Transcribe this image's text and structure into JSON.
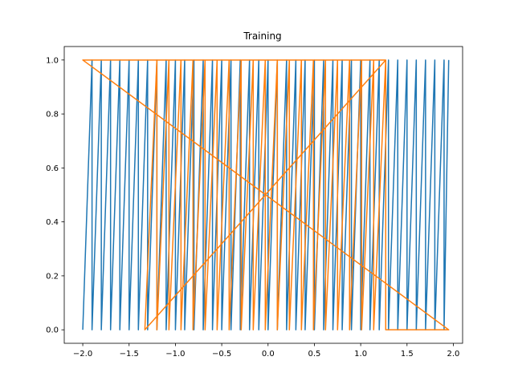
{
  "chart_data": {
    "type": "line",
    "title": "Training",
    "xlabel": "",
    "ylabel": "",
    "xlim": [
      -2.2,
      2.1
    ],
    "ylim": [
      -0.05,
      1.05
    ],
    "xticks": [
      -2.0,
      -1.5,
      -1.0,
      -0.5,
      0.0,
      0.5,
      1.0,
      1.5,
      2.0
    ],
    "xtick_labels": [
      "−2.0",
      "−1.5",
      "−1.0",
      "−0.5",
      "0.0",
      "0.5",
      "1.0",
      "1.5",
      "2.0"
    ],
    "yticks": [
      0.0,
      0.2,
      0.4,
      0.6,
      0.8,
      1.0
    ],
    "ytick_labels": [
      "0.0",
      "0.2",
      "0.4",
      "0.6",
      "0.8",
      "1.0"
    ],
    "grid": false,
    "series": [
      {
        "color": "#1f77b4",
        "linewidth": 1.5,
        "x": [
          -2.0,
          -1.9,
          -1.9,
          -1.8,
          -1.8,
          -1.7,
          -1.7,
          -1.6,
          -1.6,
          -1.5,
          -1.5,
          -1.4,
          -1.4,
          -1.3,
          -1.3,
          -1.2,
          -1.2,
          -1.1,
          -1.1,
          -1.0,
          -1.0,
          -0.9,
          -0.9,
          -0.8,
          -0.8,
          -0.7,
          -0.7,
          -0.6,
          -0.6,
          -0.5,
          -0.5,
          -0.4,
          -0.4,
          -0.3,
          -0.3,
          -0.2,
          -0.2,
          -0.1,
          -0.1,
          0.0,
          0.0,
          0.1,
          0.1,
          0.2,
          0.2,
          0.3,
          0.3,
          0.4,
          0.4,
          0.5,
          0.5,
          0.6,
          0.6,
          0.7,
          0.7,
          0.8,
          0.8,
          0.9,
          0.9,
          1.0,
          1.0,
          1.1,
          1.1,
          1.2,
          1.2,
          1.3,
          1.3,
          1.4,
          1.4,
          1.5,
          1.5,
          1.6,
          1.6,
          1.7,
          1.7,
          1.8,
          1.8,
          1.9,
          1.9,
          1.95
        ],
        "y": [
          0,
          1,
          0,
          1,
          0,
          1,
          0,
          1,
          0,
          1,
          0,
          1,
          0,
          1,
          0,
          1,
          0,
          1,
          0,
          1,
          0,
          1,
          0,
          1,
          0,
          1,
          0,
          1,
          0,
          1,
          0,
          1,
          0,
          1,
          0,
          1,
          0,
          1,
          0,
          1,
          0,
          1,
          0,
          1,
          0,
          1,
          0,
          1,
          0,
          1,
          0,
          1,
          0,
          1,
          0,
          1,
          0,
          1,
          0,
          1,
          0,
          1,
          0,
          1,
          0,
          1,
          0,
          1,
          0,
          1,
          0,
          1,
          0,
          1,
          0,
          1,
          0,
          1,
          0,
          1
        ]
      },
      {
        "color": "#ff7f0e",
        "linewidth": 1.5,
        "x": [
          -2.0,
          1.95,
          1.95,
          -2.0,
          1.27,
          1.27,
          -1.33,
          -1.33,
          -1.2,
          -1.2,
          -1.07,
          -1.07,
          -0.94,
          -0.94,
          -0.81,
          -0.81,
          -0.68,
          -0.68,
          -0.55,
          -0.55,
          -0.42,
          -0.42,
          -0.29,
          -0.29,
          -0.16,
          -0.16,
          -0.03,
          -0.03,
          0.1,
          0.1,
          0.23,
          0.23,
          0.36,
          0.36,
          0.49,
          0.49,
          0.62,
          0.62,
          0.75,
          0.75,
          0.88,
          0.88,
          1.01,
          1.01,
          1.14,
          1.14,
          1.27,
          1.27,
          1.95
        ],
        "y": [
          1.0,
          0.0,
          0.0,
          1.0,
          1.0,
          1.0,
          0.0,
          0.0,
          1.0,
          0.0,
          1.0,
          0.0,
          1.0,
          0.0,
          1.0,
          0.0,
          1.0,
          0.0,
          1.0,
          0.0,
          1.0,
          0.0,
          1.0,
          0.0,
          1.0,
          0.0,
          1.0,
          0.0,
          1.0,
          0.0,
          1.0,
          0.0,
          1.0,
          0.0,
          1.0,
          0.0,
          1.0,
          0.0,
          1.0,
          0.0,
          1.0,
          0.0,
          1.0,
          0.0,
          1.0,
          0.0,
          1.0,
          0.0,
          0.0
        ]
      }
    ]
  }
}
